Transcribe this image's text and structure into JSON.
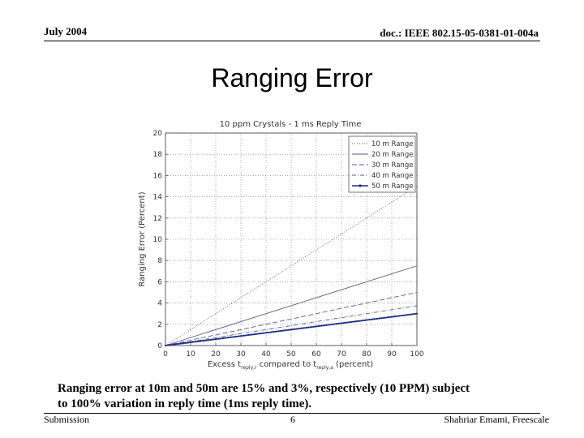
{
  "header": {
    "date": "July 2004",
    "doc_id": "doc.: IEEE 802.15-05-0381-01-004a"
  },
  "slide": {
    "title": "Ranging Error",
    "caption_line1": "Ranging error at 10m and 50m are 15% and 3%, respectively (10 PPM) subject",
    "caption_line2": "to 100% variation in reply time (1ms reply time)."
  },
  "footer": {
    "left": "Submission",
    "page": "6",
    "author": "Shahriar Emami, Freescale"
  },
  "chart_data": {
    "type": "line",
    "title": "10 ppm Crystals - 1 ms Reply Time",
    "xlabel": "Excess t_reply,r compared to t_reply,a (percent)",
    "xlabel_main": "Excess t",
    "xlabel_sub1": "reply,r",
    "xlabel_mid": " compared to t",
    "xlabel_sub2": "reply,a",
    "xlabel_end": " (percent)",
    "ylabel": "Ranging Error (Percent)",
    "xlim": [
      0,
      100
    ],
    "ylim": [
      0,
      20
    ],
    "xticks": [
      0,
      10,
      20,
      30,
      40,
      50,
      60,
      70,
      80,
      90,
      100
    ],
    "yticks": [
      0,
      2,
      4,
      6,
      8,
      10,
      12,
      14,
      16,
      18,
      20
    ],
    "grid": true,
    "legend_position": "top-right",
    "x": [
      0,
      100
    ],
    "series": [
      {
        "name": "10 m Range",
        "values": [
          0,
          15
        ],
        "color": "#5a5a8a",
        "dash": "1,2",
        "marker": false
      },
      {
        "name": "20 m Range",
        "values": [
          0,
          7.5
        ],
        "color": "#5a5a8a",
        "dash": "",
        "marker": false
      },
      {
        "name": "30 m Range",
        "values": [
          0,
          5
        ],
        "color": "#5a5a8a",
        "dash": "6,3",
        "marker": false
      },
      {
        "name": "40 m Range",
        "values": [
          0,
          3.75
        ],
        "color": "#5a5a8a",
        "dash": "5,2,1,2",
        "marker": false
      },
      {
        "name": "50 m Range",
        "values": [
          0,
          3
        ],
        "color": "#1f2a8a",
        "dash": "",
        "marker": true
      }
    ]
  }
}
